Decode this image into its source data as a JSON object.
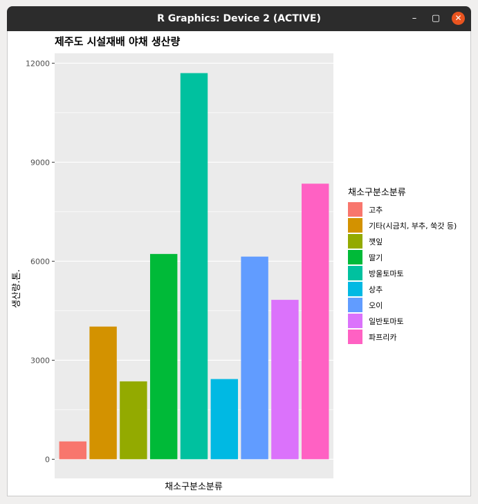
{
  "window": {
    "title": "R Graphics: Device 2 (ACTIVE)",
    "buttons": {
      "minimize": "–",
      "maximize": "▢",
      "close": "✕"
    }
  },
  "chart_data": {
    "type": "bar",
    "title": "제주도 시설재배 야채 생산량",
    "xlabel": "채소구분소분류",
    "ylabel": "생산량.톤.",
    "categories": [
      "고추",
      "기타(시금치, 부추, 쑥갓 등)",
      "깻잎",
      "딸기",
      "방울토마토",
      "상추",
      "오이",
      "일반토마토",
      "파프리카"
    ],
    "values": [
      540,
      4020,
      2360,
      6220,
      11700,
      2430,
      6140,
      4830,
      8350
    ],
    "colors": [
      "#F8766D",
      "#D39200",
      "#93AA00",
      "#00BA38",
      "#00C19F",
      "#00B9E3",
      "#619CFF",
      "#DB72FB",
      "#FF61C3"
    ],
    "ylim": [
      -580,
      12300
    ],
    "yticks": [
      0,
      3000,
      6000,
      9000,
      12000
    ],
    "ytick_labels": [
      "0",
      "3000",
      "6000",
      "9000",
      "12000"
    ],
    "legend": {
      "title": "채소구분소분류",
      "placement": "right"
    },
    "grid": true
  }
}
